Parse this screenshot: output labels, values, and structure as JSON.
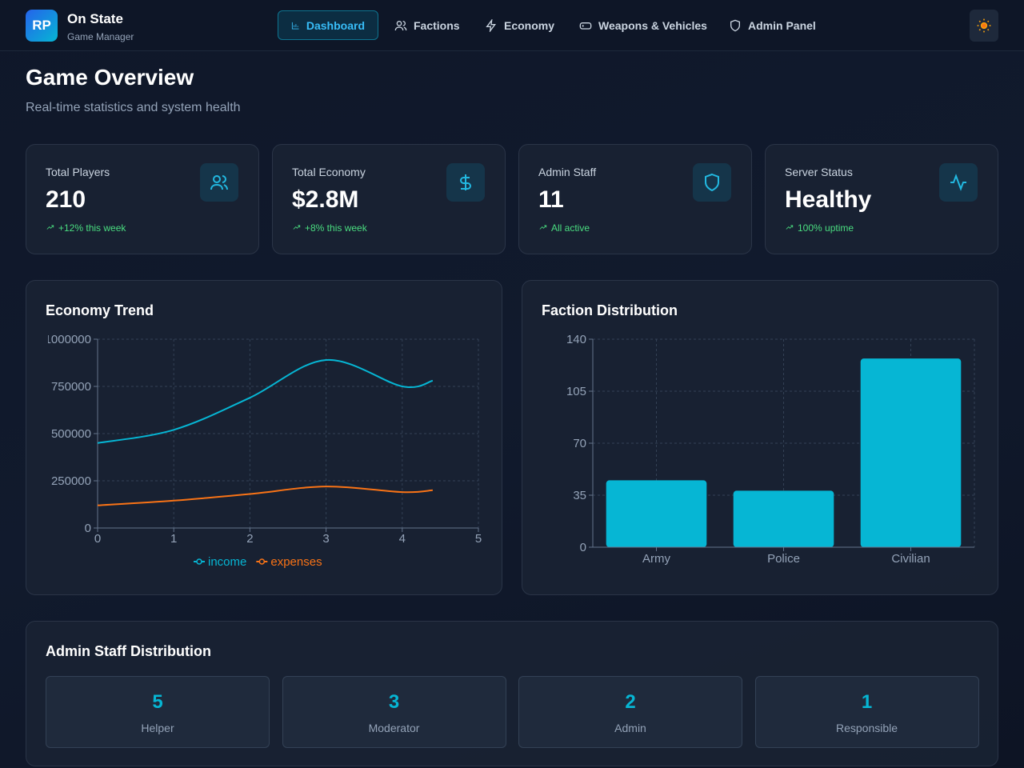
{
  "header": {
    "logo": "RP",
    "title": "On State",
    "subtitle": "Game Manager"
  },
  "nav": [
    "Dashboard",
    "Factions",
    "Economy",
    "Weapons & Vehicles",
    "Admin Panel"
  ],
  "page": {
    "title": "Game Overview",
    "subtitle": "Real-time statistics and system health"
  },
  "stats": [
    {
      "label": "Total Players",
      "value": "210",
      "change": "+12% this week"
    },
    {
      "label": "Total Economy",
      "value": "$2.8M",
      "change": "+8% this week"
    },
    {
      "label": "Admin Staff",
      "value": "11",
      "change": "All active"
    },
    {
      "label": "Server Status",
      "value": "Healthy",
      "change": "100% uptime"
    }
  ],
  "chart_data": [
    {
      "type": "line",
      "title": "Economy Trend",
      "x": [
        0,
        1,
        2,
        3,
        4,
        4.4
      ],
      "xlim": [
        0,
        5
      ],
      "xticks": [
        0,
        1,
        2,
        3,
        4,
        5
      ],
      "ylim": [
        0,
        1000000
      ],
      "yticks": [
        0,
        250000,
        500000,
        750000,
        1000000
      ],
      "series": [
        {
          "name": "income",
          "color": "#06b6d4",
          "values": [
            450000,
            520000,
            690000,
            890000,
            750000,
            780000
          ]
        },
        {
          "name": "expenses",
          "color": "#f97316",
          "values": [
            120000,
            145000,
            180000,
            220000,
            190000,
            200000
          ]
        }
      ],
      "grid": true,
      "legend": "bottom"
    },
    {
      "type": "bar",
      "title": "Faction Distribution",
      "categories": [
        "Army",
        "Police",
        "Civilian"
      ],
      "values": [
        45,
        38,
        127
      ],
      "color": "#06b6d4",
      "ylim": [
        0,
        140
      ],
      "yticks": [
        0,
        35,
        70,
        105,
        140
      ],
      "grid": true
    }
  ],
  "admin_staff": {
    "title": "Admin Staff Distribution",
    "roles": [
      {
        "count": 5,
        "label": "Helper"
      },
      {
        "count": 3,
        "label": "Moderator"
      },
      {
        "count": 2,
        "label": "Admin"
      },
      {
        "count": 1,
        "label": "Responsible"
      }
    ]
  }
}
